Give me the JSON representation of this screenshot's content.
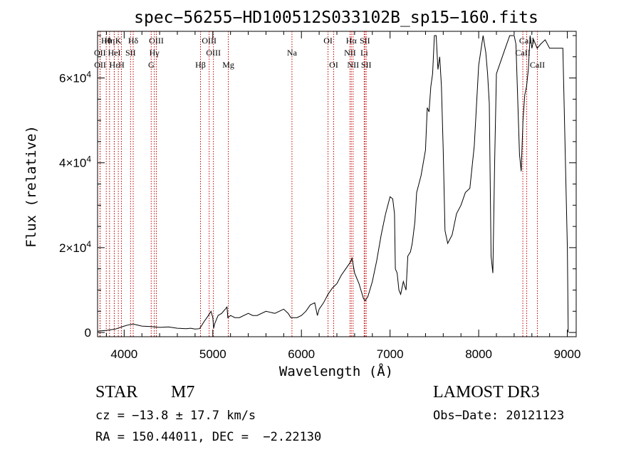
{
  "chart_data": {
    "type": "line",
    "title": "spec−56255−HD100512S033102B_sp15−160.fits",
    "xlabel": "Wavelength (Å)",
    "ylabel": "Flux (relative)",
    "xlim": [
      3700,
      9100
    ],
    "ylim": [
      -1000,
      71000
    ],
    "x_ticks": [
      4000,
      5000,
      6000,
      7000,
      8000,
      9000
    ],
    "x_tick_labels": [
      "4000",
      "5000",
      "6000",
      "7000",
      "8000",
      "9000"
    ],
    "y_ticks": [
      {
        "value": 0,
        "mantissa": "0",
        "exponent": ""
      },
      {
        "value": 20000,
        "mantissa": "2×10",
        "exponent": "4"
      },
      {
        "value": 40000,
        "mantissa": "4×10",
        "exponent": "4"
      },
      {
        "value": 60000,
        "mantissa": "6×10",
        "exponent": "4"
      }
    ],
    "series": [
      {
        "name": "flux",
        "x": [
          3700,
          3800,
          3900,
          4000,
          4050,
          4100,
          4200,
          4300,
          4400,
          4500,
          4600,
          4700,
          4750,
          4800,
          4850,
          4870,
          4900,
          4950,
          4980,
          5000,
          5010,
          5020,
          5060,
          5100,
          5140,
          5160,
          5170,
          5200,
          5250,
          5300,
          5400,
          5450,
          5500,
          5600,
          5700,
          5800,
          5850,
          5880,
          5900,
          5950,
          6000,
          6050,
          6100,
          6150,
          6180,
          6200,
          6250,
          6300,
          6350,
          6400,
          6450,
          6500,
          6550,
          6570,
          6600,
          6650,
          6700,
          6720,
          6750,
          6800,
          6850,
          6900,
          6950,
          7000,
          7030,
          7050,
          7060,
          7080,
          7100,
          7120,
          7150,
          7180,
          7200,
          7230,
          7250,
          7280,
          7300,
          7350,
          7400,
          7420,
          7440,
          7460,
          7480,
          7500,
          7520,
          7540,
          7560,
          7580,
          7600,
          7620,
          7650,
          7700,
          7750,
          7800,
          7850,
          7900,
          7950,
          8000,
          8050,
          8080,
          8100,
          8120,
          8140,
          8160,
          8180,
          8200,
          8250,
          8300,
          8350,
          8380,
          8400,
          8420,
          8440,
          8460,
          8480,
          8500,
          8520,
          8540,
          8560,
          8580,
          8600,
          8620,
          8640,
          8660,
          8700,
          8750,
          8800,
          8850,
          8900,
          8950,
          9000,
          9010
        ],
        "y": [
          300,
          500,
          800,
          1500,
          1800,
          2000,
          1500,
          1400,
          1200,
          1300,
          1000,
          900,
          1000,
          800,
          900,
          1500,
          2500,
          4000,
          5000,
          3500,
          1000,
          2000,
          4000,
          4500,
          5500,
          6000,
          3500,
          4000,
          3500,
          3500,
          4500,
          4000,
          4000,
          5000,
          4500,
          5500,
          4500,
          3500,
          3500,
          3500,
          4000,
          5000,
          6500,
          7000,
          4000,
          5500,
          7000,
          9000,
          10500,
          11500,
          13500,
          15000,
          16500,
          17500,
          14000,
          11500,
          8000,
          7500,
          8500,
          12000,
          17000,
          23000,
          28000,
          32000,
          31500,
          28000,
          15000,
          14000,
          10000,
          9000,
          12000,
          10000,
          18000,
          19000,
          21000,
          26000,
          33000,
          37000,
          43000,
          53000,
          52000,
          58000,
          61000,
          70000,
          70000,
          62000,
          65000,
          58000,
          43000,
          24000,
          21000,
          23000,
          28000,
          30000,
          33000,
          34000,
          44000,
          63000,
          70000,
          66000,
          61000,
          54000,
          18000,
          14000,
          40000,
          61000,
          64000,
          67000,
          70000,
          70000,
          70000,
          68000,
          55000,
          42000,
          38000,
          50000,
          56000,
          58000,
          62000,
          70000,
          67000,
          69000,
          68000,
          67000,
          68000,
          69000,
          67000,
          67000,
          67000,
          67000,
          20000,
          0
        ]
      }
    ],
    "lines": [
      {
        "name": "Hθ",
        "wl": 3798,
        "row": 1
      },
      {
        "name": "OII",
        "wl": 3727,
        "row": 2
      },
      {
        "name": "OII",
        "wl": 3729,
        "row": 3
      },
      {
        "name": "Hη",
        "wl": 3835,
        "row": 1
      },
      {
        "name": "HeI",
        "wl": 3889,
        "row": 2
      },
      {
        "name": "Hε",
        "wl": 3888,
        "row": 3
      },
      {
        "name": "K",
        "wl": 3934,
        "row": 1
      },
      {
        "name": "H",
        "wl": 3969,
        "row": 3
      },
      {
        "name": "SII",
        "wl": 4072,
        "row": 2
      },
      {
        "name": "Hδ",
        "wl": 4102,
        "row": 1
      },
      {
        "name": "OIII",
        "wl": 4363,
        "row": 1
      },
      {
        "name": "Hγ",
        "wl": 4340,
        "row": 2
      },
      {
        "name": "G",
        "wl": 4305,
        "row": 3
      },
      {
        "name": "Hβ",
        "wl": 4861,
        "row": 3
      },
      {
        "name": "OIII",
        "wl": 4959,
        "row": 1
      },
      {
        "name": "OIII",
        "wl": 5007,
        "row": 2
      },
      {
        "name": "Mg",
        "wl": 5175,
        "row": 3
      },
      {
        "name": "Na",
        "wl": 5893,
        "row": 2
      },
      {
        "name": "OI",
        "wl": 6300,
        "row": 1
      },
      {
        "name": "OI",
        "wl": 6364,
        "row": 3
      },
      {
        "name": "Hα",
        "wl": 6563,
        "row": 1
      },
      {
        "name": "NII",
        "wl": 6548,
        "row": 2
      },
      {
        "name": "NII",
        "wl": 6583,
        "row": 3
      },
      {
        "name": "SII",
        "wl": 6716,
        "row": 1
      },
      {
        "name": "Li",
        "wl": 6708,
        "row": 2
      },
      {
        "name": "SII",
        "wl": 6731,
        "row": 3
      },
      {
        "name": "CaII",
        "wl": 8542,
        "row": 1
      },
      {
        "name": "CaII",
        "wl": 8498,
        "row": 2
      },
      {
        "name": "CaII",
        "wl": 8662,
        "row": 3
      }
    ]
  },
  "info": {
    "object_class": "STAR",
    "subclass": "M7",
    "survey": "LAMOST DR3",
    "cz": "cz = −13.8 ± 17.7 km/s",
    "obs_date": "Obs−Date: 20121123",
    "radec": "RA = 150.44011, DEC =  −2.22130"
  }
}
